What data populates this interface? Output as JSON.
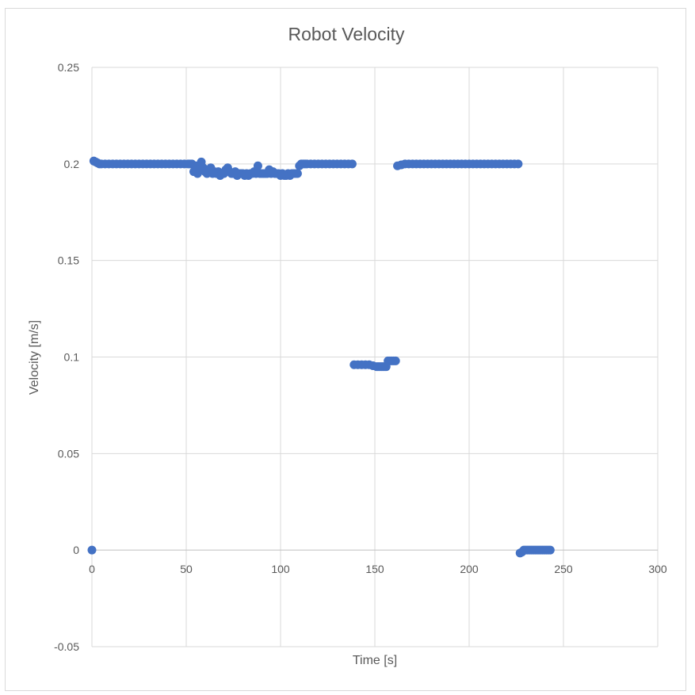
{
  "chart_data": {
    "type": "scatter",
    "title": "Robot Velocity",
    "xlabel": "Time [s]",
    "ylabel": "Velocity [m/s]",
    "xlim": [
      0,
      300
    ],
    "ylim": [
      -0.05,
      0.25
    ],
    "x_ticks": [
      0,
      50,
      100,
      150,
      200,
      250,
      300
    ],
    "y_ticks": [
      -0.05,
      0,
      0.05,
      0.1,
      0.15,
      0.2,
      0.25
    ],
    "x_tick_labels": [
      "0",
      "50",
      "100",
      "150",
      "200",
      "250",
      "300"
    ],
    "y_tick_labels": [
      "-0.05",
      "0",
      "0.05",
      "0.1",
      "0.15",
      "0.2",
      "0.25"
    ],
    "grid": true,
    "marker_color": "#4472C4",
    "series": [
      {
        "x": [
          0,
          1,
          2,
          3,
          4,
          5,
          7,
          9,
          11,
          13,
          15,
          17,
          19,
          21,
          23,
          25,
          27,
          29,
          31,
          33,
          35,
          37,
          39,
          41,
          43,
          45,
          47,
          49,
          51,
          52,
          53,
          54,
          55,
          56,
          57,
          58,
          59,
          60,
          61,
          62,
          63,
          64,
          65,
          66,
          67,
          68,
          69,
          70,
          71,
          72,
          73,
          74,
          75,
          76,
          77,
          78,
          79,
          80,
          81,
          82,
          83,
          84,
          85,
          86,
          87,
          88,
          89,
          90,
          91,
          92,
          93,
          94,
          95,
          96,
          97,
          98,
          99,
          100,
          101,
          102,
          103,
          104,
          105,
          106,
          107,
          108,
          109,
          110,
          111,
          112,
          113,
          114,
          116,
          118,
          120,
          122,
          124,
          126,
          128,
          130,
          132,
          134,
          136,
          138,
          139,
          141,
          143,
          145,
          147,
          149,
          151,
          152,
          153,
          154,
          155,
          156,
          157,
          158,
          159,
          160,
          161,
          162,
          164,
          166,
          168,
          170,
          172,
          174,
          176,
          178,
          180,
          182,
          184,
          186,
          188,
          190,
          192,
          194,
          196,
          198,
          200,
          202,
          204,
          206,
          208,
          210,
          212,
          214,
          216,
          218,
          220,
          222,
          224,
          226,
          227,
          228,
          229,
          230,
          231,
          232,
          233,
          234,
          235,
          236,
          237,
          238,
          239,
          240,
          241,
          242,
          243
        ],
        "y": [
          0,
          0.2015,
          0.201,
          0.2005,
          0.2,
          0.2,
          0.2,
          0.2,
          0.2,
          0.2,
          0.2,
          0.2,
          0.2,
          0.2,
          0.2,
          0.2,
          0.2,
          0.2,
          0.2,
          0.2,
          0.2,
          0.2,
          0.2,
          0.2,
          0.2,
          0.2,
          0.2,
          0.2,
          0.2,
          0.2,
          0.2,
          0.196,
          0.199,
          0.195,
          0.197,
          0.201,
          0.198,
          0.196,
          0.195,
          0.196,
          0.198,
          0.195,
          0.196,
          0.195,
          0.196,
          0.194,
          0.195,
          0.195,
          0.197,
          0.198,
          0.196,
          0.195,
          0.195,
          0.196,
          0.194,
          0.195,
          0.195,
          0.195,
          0.194,
          0.195,
          0.194,
          0.195,
          0.195,
          0.196,
          0.195,
          0.199,
          0.195,
          0.195,
          0.195,
          0.195,
          0.195,
          0.197,
          0.195,
          0.196,
          0.195,
          0.195,
          0.195,
          0.194,
          0.195,
          0.194,
          0.194,
          0.195,
          0.194,
          0.195,
          0.195,
          0.195,
          0.195,
          0.199,
          0.2,
          0.2,
          0.2,
          0.2,
          0.2,
          0.2,
          0.2,
          0.2,
          0.2,
          0.2,
          0.2,
          0.2,
          0.2,
          0.2,
          0.2,
          0.2,
          0.096,
          0.096,
          0.096,
          0.096,
          0.096,
          0.0955,
          0.095,
          0.095,
          0.095,
          0.095,
          0.095,
          0.095,
          0.098,
          0.098,
          0.098,
          0.098,
          0.098,
          0.199,
          0.1995,
          0.2,
          0.2,
          0.2,
          0.2,
          0.2,
          0.2,
          0.2,
          0.2,
          0.2,
          0.2,
          0.2,
          0.2,
          0.2,
          0.2,
          0.2,
          0.2,
          0.2,
          0.2,
          0.2,
          0.2,
          0.2,
          0.2,
          0.2,
          0.2,
          0.2,
          0.2,
          0.2,
          0.2,
          0.2,
          0.2,
          0.2,
          -0.0015,
          -0.001,
          0,
          0,
          0,
          0,
          0,
          0,
          0,
          0,
          0,
          0,
          0,
          0,
          0,
          0,
          0
        ]
      }
    ]
  }
}
